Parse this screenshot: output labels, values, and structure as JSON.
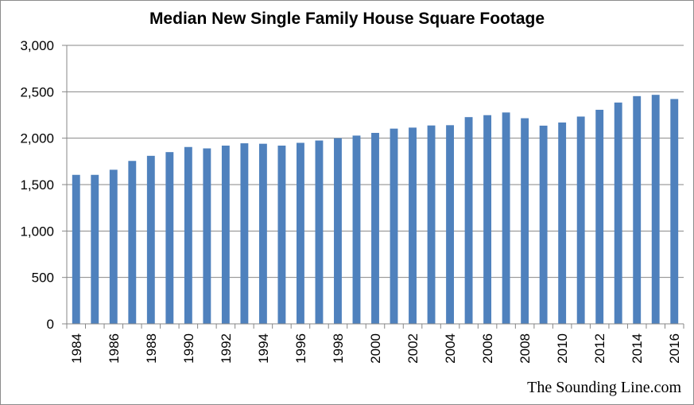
{
  "chart_data": {
    "type": "bar",
    "title": "Median New Single Family House Square Footage",
    "xlabel": "",
    "ylabel": "",
    "ylim": [
      0,
      3000
    ],
    "yticks": [
      0,
      500,
      1000,
      1500,
      2000,
      2500,
      3000
    ],
    "ytick_labels": [
      "0",
      "500",
      "1,000",
      "1,500",
      "2,000",
      "2,500",
      "3,000"
    ],
    "categories": [
      "1984",
      "1985",
      "1986",
      "1987",
      "1988",
      "1989",
      "1990",
      "1991",
      "1992",
      "1993",
      "1994",
      "1995",
      "1996",
      "1997",
      "1998",
      "1999",
      "2000",
      "2001",
      "2002",
      "2003",
      "2004",
      "2005",
      "2006",
      "2007",
      "2008",
      "2009",
      "2010",
      "2011",
      "2012",
      "2013",
      "2014",
      "2015",
      "2016"
    ],
    "xtick_labels": [
      "1984",
      "",
      "1986",
      "",
      "1988",
      "",
      "1990",
      "",
      "1992",
      "",
      "1994",
      "",
      "1996",
      "",
      "1998",
      "",
      "2000",
      "",
      "2002",
      "",
      "2004",
      "",
      "2006",
      "",
      "2008",
      "",
      "2010",
      "",
      "2012",
      "",
      "2014",
      "",
      "2016"
    ],
    "values": [
      1605,
      1605,
      1660,
      1755,
      1810,
      1850,
      1905,
      1890,
      1920,
      1945,
      1940,
      1920,
      1950,
      1975,
      2000,
      2028,
      2057,
      2103,
      2114,
      2137,
      2140,
      2227,
      2248,
      2277,
      2215,
      2135,
      2169,
      2233,
      2306,
      2384,
      2453,
      2467,
      2422
    ],
    "grid": true,
    "legend": "none",
    "colors": {
      "bar": "#4f81bd",
      "grid": "#878787",
      "axis": "#878787"
    }
  },
  "watermark": "The Sounding Line.com"
}
